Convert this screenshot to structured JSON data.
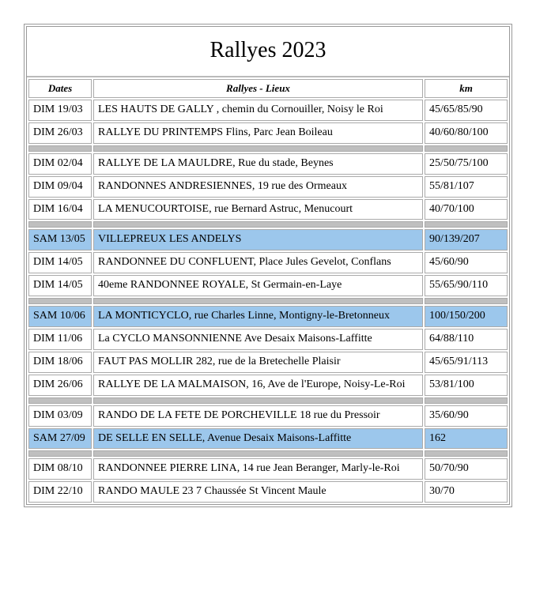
{
  "title": "Rallyes 2023",
  "headers": {
    "dates": "Dates",
    "event": "Rallyes - Lieux",
    "km": "km"
  },
  "rows": [
    {
      "type": "data",
      "date": "DIM 19/03",
      "event": "LES HAUTS DE GALLY , chemin du Cornouiller, Noisy le Roi",
      "km": "45/65/85/90"
    },
    {
      "type": "data",
      "date": "DIM 26/03",
      "event": "RALLYE DU PRINTEMPS Flins, Parc Jean Boileau",
      "km": "40/60/80/100"
    },
    {
      "type": "sep"
    },
    {
      "type": "data",
      "date": "DIM 02/04",
      "event": "RALLYE DE LA MAULDRE, Rue du stade, Beynes",
      "km": "25/50/75/100"
    },
    {
      "type": "data",
      "date": "DIM  09/04",
      "event": "RANDONNES ANDRESIENNES, 19 rue des Ormeaux",
      "km": "55/81/107"
    },
    {
      "type": "data",
      "date": "DIM 16/04",
      "event": "LA MENUCOURTOISE, rue Bernard Astruc, Menucourt",
      "km": "40/70/100"
    },
    {
      "type": "sep"
    },
    {
      "type": "data",
      "hl": true,
      "date": "SAM 13/05",
      "event": "VILLEPREUX LES ANDELYS",
      "km": "90/139/207"
    },
    {
      "type": "data",
      "date": "DIM 14/05",
      "event": "RANDONNEE DU CONFLUENT, Place Jules Gevelot, Conflans",
      "km": "45/60/90"
    },
    {
      "type": "data",
      "date": "DIM 14/05",
      "event": "40eme RANDONNEE ROYALE, St Germain-en-Laye",
      "km": "55/65/90/110"
    },
    {
      "type": "sep"
    },
    {
      "type": "data",
      "hl": true,
      "date": "SAM 10/06",
      "event": "LA MONTICYCLO, rue Charles Linne, Montigny-le-Bretonneux",
      "km": "100/150/200"
    },
    {
      "type": "data",
      "date": "DIM 11/06",
      "event": "La CYCLO MANSONNIENNE Ave Desaix Maisons-Laffitte",
      "km": "64/88/110"
    },
    {
      "type": "data",
      "date": "DIM 18/06",
      "event": "FAUT PAS MOLLIR 282, rue de la Bretechelle Plaisir",
      "km": "45/65/91/113"
    },
    {
      "type": "data",
      "date": "DIM 26/06",
      "event": "RALLYE DE LA MALMAISON, 16, Ave de l'Europe, Noisy-Le-Roi",
      "km": "53/81/100"
    },
    {
      "type": "sep"
    },
    {
      "type": "data",
      "date": "DIM 03/09",
      "event": "RANDO DE LA FETE DE PORCHEVILLE 18 rue du Pressoir",
      "km": "35/60/90"
    },
    {
      "type": "data",
      "hl": true,
      "date": "SAM 27/09",
      "event": "DE SELLE EN SELLE, Avenue Desaix Maisons-Laffitte",
      "km": "162"
    },
    {
      "type": "sep"
    },
    {
      "type": "data",
      "date": "DIM 08/10",
      "event": "RANDONNEE PIERRE LINA, 14 rue Jean Beranger, Marly-le-Roi",
      "km": "50/70/90"
    },
    {
      "type": "data",
      "date": "DIM 22/10",
      "event": "RANDO MAULE 23 7 Chaussée St Vincent Maule",
      "km": "30/70"
    }
  ]
}
